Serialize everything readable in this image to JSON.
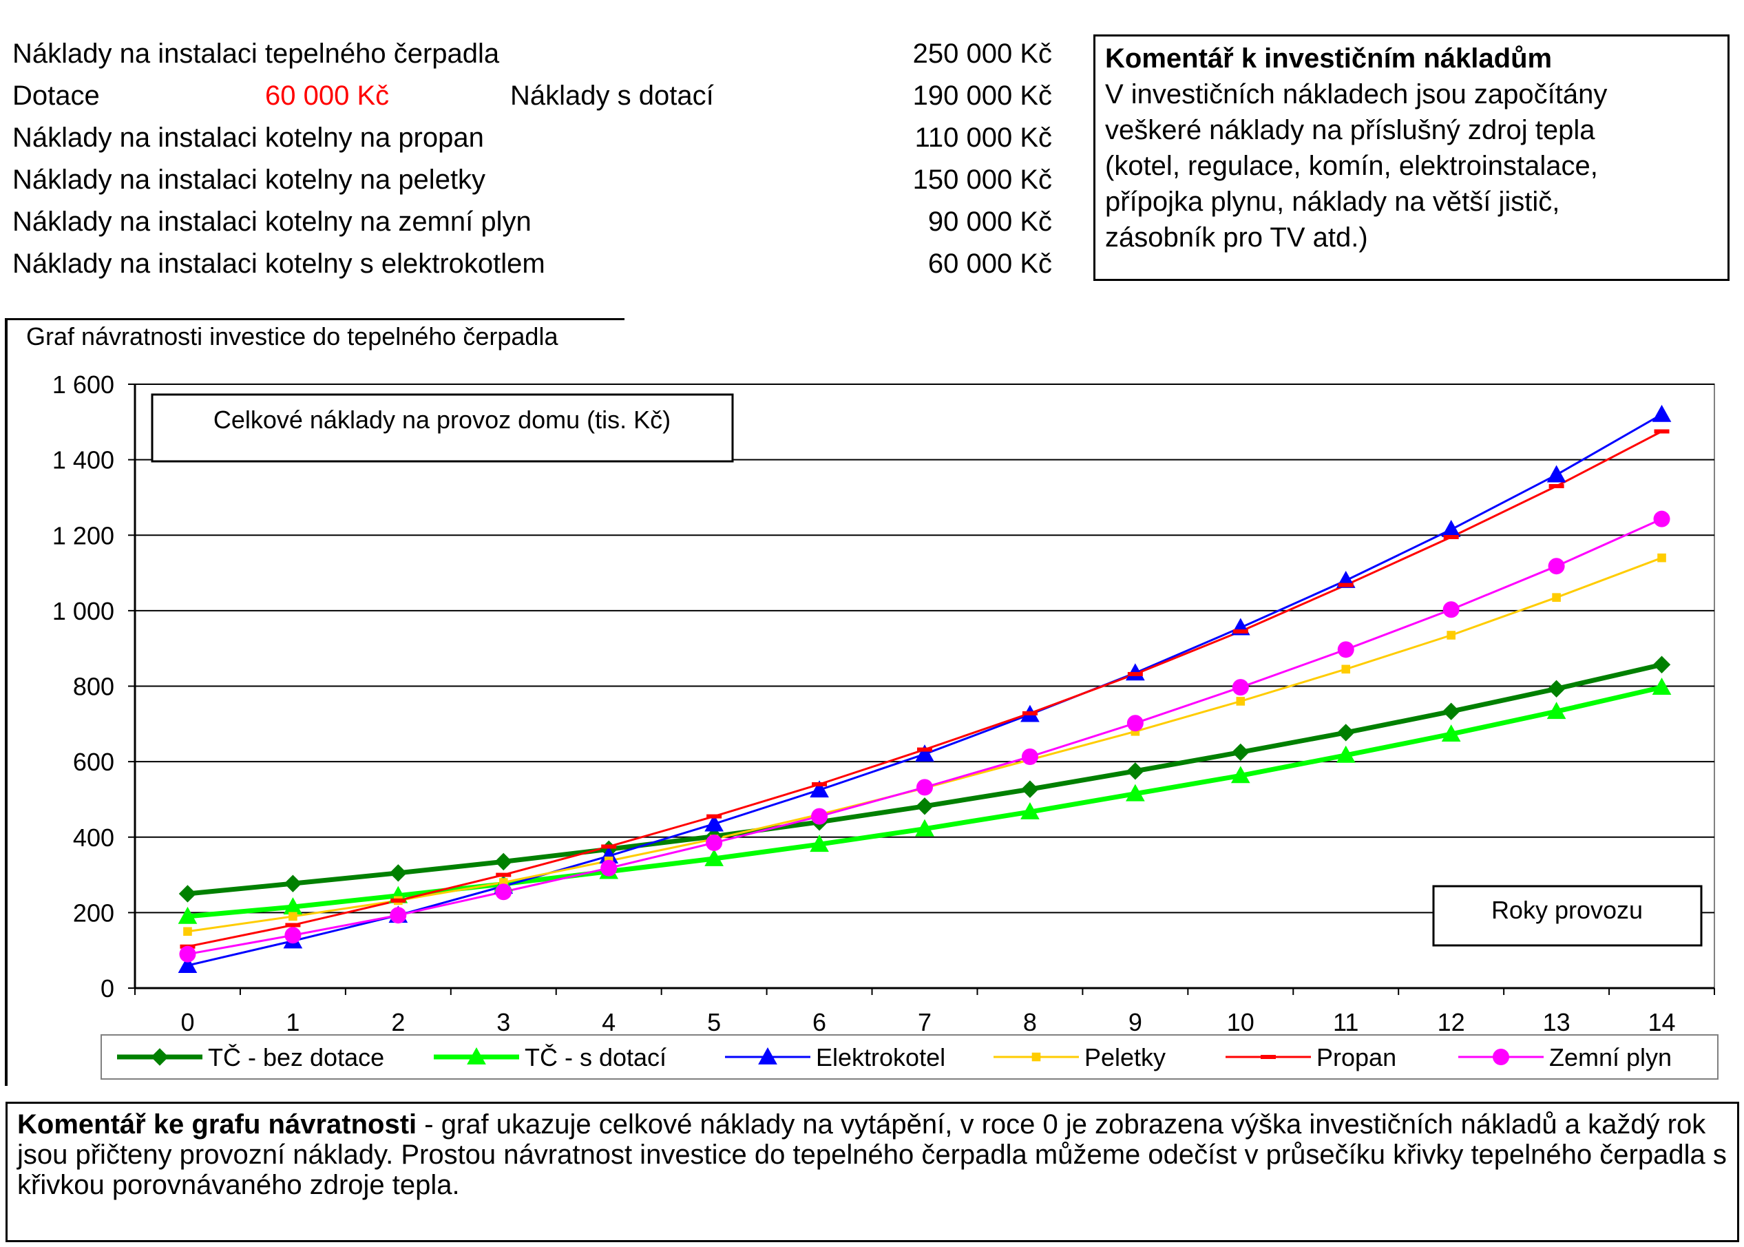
{
  "costs": {
    "rows": [
      {
        "label": "Náklady na instalaci tepelného čerpadla",
        "amount": "250 000 Kč"
      },
      {
        "label": "Náklady na instalaci kotelny na propan",
        "amount": "110 000 Kč"
      },
      {
        "label": "Náklady na instalaci kotelny na peletky",
        "amount": "150 000 Kč"
      },
      {
        "label": "Náklady na instalaci kotelny na zemní plyn",
        "amount": "90 000 Kč"
      },
      {
        "label": "Náklady na instalaci kotelny s elektrokotlem",
        "amount": "60 000 Kč"
      }
    ],
    "subsidy_label": "Dotace",
    "subsidy_amount": "60 000 Kč",
    "subsidy_amount_color": "#ff0000",
    "subsidized_label": "Náklady s dotací",
    "subsidized_amount": "190 000 Kč"
  },
  "investment_comment": {
    "title": "Komentář k investičním nákladům",
    "lines": [
      "V investičních nákladech jsou započítány",
      "veškeré náklady na příslušný zdroj tepla",
      "(kotel, regulace, komín, elektroinstalace,",
      "přípojka plynu, náklady na větší jistič,",
      "zásobník pro TV atd.)"
    ]
  },
  "graph_comment": {
    "bold": "Komentář ke grafu návratnosti",
    "text": " - graf ukazuje celkové náklady na vytápění, v roce 0 je zobrazena výška investičních nákladů a každý rok jsou přičteny provozní náklady. Prostou návratnost investice do tepelného čerpadla můžeme odečíst v průsečíku křivky tepelného čerpadla s křivkou porovnávaného zdroje tepla."
  },
  "chart_data": {
    "type": "line",
    "title": "Graf návratnosti investice do tepelného čerpadla",
    "ylabel_box": "Celkové náklady na provoz domu (tis. Kč)",
    "xlabel_box": "Roky provozu",
    "x": [
      0,
      1,
      2,
      3,
      4,
      5,
      6,
      7,
      8,
      9,
      10,
      11,
      12,
      13,
      14
    ],
    "ylim": [
      0,
      1600
    ],
    "yticks": [
      0,
      200,
      400,
      600,
      800,
      1000,
      1200,
      1400,
      1600
    ],
    "ytick_labels": [
      "0",
      "200",
      "400",
      "600",
      "800",
      "1 000",
      "1 200",
      "1 400",
      "1 600"
    ],
    "grid": true,
    "legend_position": "bottom",
    "series": [
      {
        "name": "TČ - bez dotace",
        "color": "#008000",
        "marker": "diamond",
        "thick": true,
        "values": [
          250,
          277,
          305,
          335,
          368,
          402,
          440,
          482,
          527,
          575,
          625,
          677,
          733,
          793,
          857
        ]
      },
      {
        "name": "TČ - s dotací",
        "color": "#00ff00",
        "marker": "triangle",
        "thick": true,
        "values": [
          190,
          215,
          245,
          276,
          309,
          343,
          381,
          422,
          467,
          515,
          563,
          617,
          673,
          733,
          797
        ]
      },
      {
        "name": "Elektrokotel",
        "color": "#0000ff",
        "marker": "triangle",
        "thick": false,
        "values": [
          60,
          125,
          193,
          270,
          350,
          435,
          525,
          620,
          725,
          835,
          955,
          1080,
          1215,
          1360,
          1520
        ]
      },
      {
        "name": "Peletky",
        "color": "#ffcc00",
        "marker": "square",
        "thick": false,
        "values": [
          150,
          190,
          232,
          280,
          337,
          395,
          460,
          530,
          605,
          680,
          760,
          845,
          935,
          1035,
          1140
        ]
      },
      {
        "name": "Propan",
        "color": "#ff0000",
        "marker": "dash",
        "thick": false,
        "values": [
          110,
          167,
          232,
          300,
          375,
          455,
          540,
          632,
          728,
          832,
          945,
          1068,
          1195,
          1330,
          1475
        ]
      },
      {
        "name": "Zemní plyn",
        "color": "#ff00ff",
        "marker": "circle",
        "thick": false,
        "values": [
          90,
          140,
          193,
          255,
          318,
          385,
          455,
          532,
          613,
          702,
          797,
          897,
          1003,
          1118,
          1243
        ]
      }
    ]
  }
}
